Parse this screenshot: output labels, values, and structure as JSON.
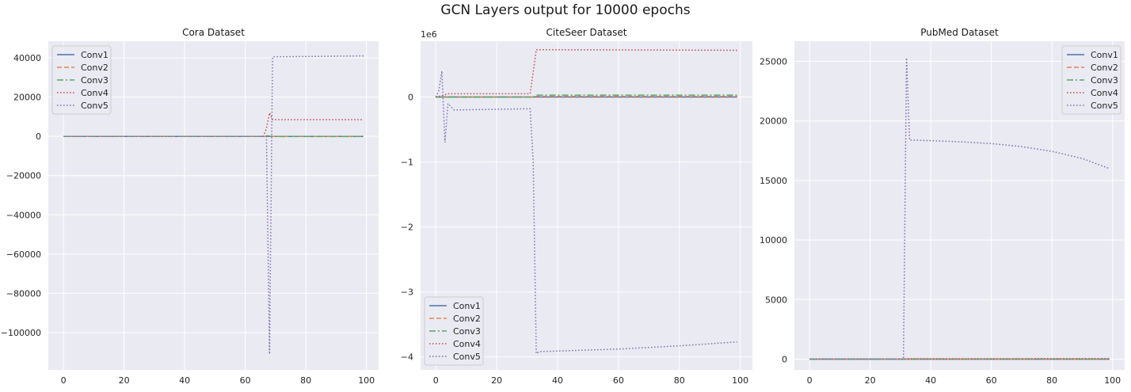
{
  "suptitle": "GCN Layers output for 10000 epochs",
  "chart_data": [
    {
      "type": "line",
      "title": "Cora Dataset",
      "xlabel": "",
      "ylabel": "",
      "xlim": [
        -5,
        104
      ],
      "ylim": [
        -119000,
        48500
      ],
      "xticks": [
        0,
        20,
        40,
        60,
        80,
        100
      ],
      "yticks": [
        -100000,
        -80000,
        -60000,
        -40000,
        -20000,
        0,
        20000,
        40000
      ],
      "ytick_labels": [
        "−100000",
        "−80000",
        "−60000",
        "−40000",
        "−20000",
        "0",
        "20000",
        "40000"
      ],
      "y_multiplier": "",
      "legend": "upper left",
      "grid": true,
      "series": [
        {
          "name": "Conv1",
          "color": "#4c72b0",
          "dash": "solid",
          "points": [
            [
              0,
              0
            ],
            [
              99,
              0
            ]
          ]
        },
        {
          "name": "Conv2",
          "color": "#dd8452",
          "dash": "dashed",
          "points": [
            [
              0,
              0
            ],
            [
              99,
              0
            ]
          ]
        },
        {
          "name": "Conv3",
          "color": "#55a868",
          "dash": "dashdot",
          "points": [
            [
              0,
              0
            ],
            [
              66,
              0
            ],
            [
              67,
              300
            ],
            [
              69,
              -100
            ],
            [
              99,
              -100
            ]
          ]
        },
        {
          "name": "Conv4",
          "color": "#c44e52",
          "dash": "dotted",
          "points": [
            [
              0,
              0
            ],
            [
              66,
              0
            ],
            [
              67,
              4000
            ],
            [
              68,
              12000
            ],
            [
              69,
              8500
            ],
            [
              99,
              8500
            ]
          ]
        },
        {
          "name": "Conv5",
          "color": "#8172b3",
          "dash": "dotted",
          "points": [
            [
              0,
              0
            ],
            [
              67,
              0
            ],
            [
              68,
              -111000
            ],
            [
              69,
              40500
            ],
            [
              99,
              41000
            ]
          ]
        }
      ]
    },
    {
      "type": "line",
      "title": "CiteSeer Dataset",
      "xlabel": "",
      "ylabel": "",
      "xlim": [
        -5,
        104
      ],
      "ylim": [
        -4.2,
        0.86
      ],
      "xticks": [
        0,
        20,
        40,
        60,
        80,
        100
      ],
      "yticks": [
        -4,
        -3,
        -2,
        -1,
        0
      ],
      "ytick_labels": [
        "−4",
        "−3",
        "−2",
        "−1",
        "0"
      ],
      "y_multiplier": "1e6",
      "legend": "lower left",
      "grid": true,
      "series": [
        {
          "name": "Conv1",
          "color": "#4c72b0",
          "dash": "solid",
          "points": [
            [
              0,
              0
            ],
            [
              99,
              0
            ]
          ]
        },
        {
          "name": "Conv2",
          "color": "#dd8452",
          "dash": "dashed",
          "points": [
            [
              0,
              0
            ],
            [
              32,
              0
            ],
            [
              33,
              0.01
            ],
            [
              99,
              0.01
            ]
          ]
        },
        {
          "name": "Conv3",
          "color": "#55a868",
          "dash": "dashdot",
          "points": [
            [
              0,
              0
            ],
            [
              32,
              0
            ],
            [
              33,
              0.03
            ],
            [
              99,
              0.03
            ]
          ]
        },
        {
          "name": "Conv4",
          "color": "#c44e52",
          "dash": "dotted",
          "points": [
            [
              0,
              0
            ],
            [
              2,
              0.02
            ],
            [
              4,
              0.05
            ],
            [
              31,
              0.05
            ],
            [
              33,
              0.73
            ],
            [
              99,
              0.72
            ]
          ]
        },
        {
          "name": "Conv5",
          "color": "#8172b3",
          "dash": "dotted",
          "points": [
            [
              0,
              0
            ],
            [
              1,
              0.1
            ],
            [
              2,
              0.4
            ],
            [
              3,
              -0.7
            ],
            [
              4,
              -0.1
            ],
            [
              5,
              -0.15
            ],
            [
              6,
              -0.2
            ],
            [
              31,
              -0.18
            ],
            [
              32,
              -1.0
            ],
            [
              33,
              -3.95
            ],
            [
              34,
              -3.92
            ],
            [
              60,
              -3.88
            ],
            [
              80,
              -3.83
            ],
            [
              99,
              -3.77
            ]
          ]
        }
      ]
    },
    {
      "type": "line",
      "title": "PubMed Dataset",
      "xlabel": "",
      "ylabel": "",
      "xlim": [
        -5,
        104
      ],
      "ylim": [
        -900,
        26700
      ],
      "xticks": [
        0,
        20,
        40,
        60,
        80,
        100
      ],
      "yticks": [
        0,
        5000,
        10000,
        15000,
        20000,
        25000
      ],
      "ytick_labels": [
        "0",
        "5000",
        "10000",
        "15000",
        "20000",
        "25000"
      ],
      "y_multiplier": "",
      "legend": "upper right",
      "grid": true,
      "series": [
        {
          "name": "Conv1",
          "color": "#4c72b0",
          "dash": "solid",
          "points": [
            [
              0,
              0
            ],
            [
              99,
              0
            ]
          ]
        },
        {
          "name": "Conv2",
          "color": "#dd8452",
          "dash": "dashed",
          "points": [
            [
              0,
              0
            ],
            [
              99,
              0
            ]
          ]
        },
        {
          "name": "Conv3",
          "color": "#55a868",
          "dash": "dashdot",
          "points": [
            [
              0,
              0
            ],
            [
              99,
              0
            ]
          ]
        },
        {
          "name": "Conv4",
          "color": "#c44e52",
          "dash": "dotted",
          "points": [
            [
              0,
              0
            ],
            [
              31,
              0
            ],
            [
              32,
              30
            ],
            [
              99,
              40
            ]
          ]
        },
        {
          "name": "Conv5",
          "color": "#8172b3",
          "dash": "dotted",
          "points": [
            [
              0,
              0
            ],
            [
              31,
              0
            ],
            [
              32,
              25300
            ],
            [
              33,
              18400
            ],
            [
              40,
              18350
            ],
            [
              50,
              18250
            ],
            [
              60,
              18100
            ],
            [
              70,
              17850
            ],
            [
              80,
              17450
            ],
            [
              90,
              16850
            ],
            [
              99,
              16000
            ]
          ]
        }
      ]
    }
  ]
}
